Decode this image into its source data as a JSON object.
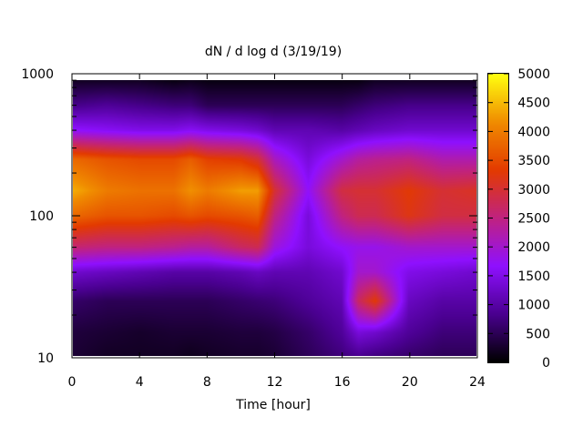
{
  "chart_data": {
    "type": "heatmap",
    "title": "dN / d log d (3/19/19)",
    "xlabel": "Time [hour]",
    "ylabel": "",
    "xlim": [
      0,
      24
    ],
    "ylim": [
      10,
      1000
    ],
    "yscale": "log",
    "x_ticks": [
      0,
      4,
      8,
      12,
      16,
      20,
      24
    ],
    "x_tick_labels": [
      "0",
      "4",
      "8",
      "12",
      "16",
      "20",
      "24"
    ],
    "y_ticks": [
      10,
      100,
      1000
    ],
    "y_tick_labels": [
      "10",
      "100",
      "1000"
    ],
    "colorbar": {
      "min": 0,
      "max": 5000,
      "ticks": [
        0,
        500,
        1000,
        1500,
        2000,
        2500,
        3000,
        3500,
        4000,
        4500,
        5000
      ],
      "tick_labels": [
        "0",
        "500",
        "1000",
        "1500",
        "2000",
        "2500",
        "3000",
        "3500",
        "4000",
        "4500",
        "5000"
      ],
      "palette": [
        "#000000",
        "#4a0090",
        "#8f10ff",
        "#c02280",
        "#e33a00",
        "#f08c00",
        "#ffff10"
      ]
    },
    "times": [
      0,
      2,
      4,
      6,
      7,
      8,
      10,
      11,
      12,
      14,
      16,
      17,
      18,
      20,
      22,
      24
    ],
    "diameters": [
      10,
      15,
      25,
      40,
      60,
      100,
      150,
      250,
      400,
      600,
      900
    ],
    "values": [
      [
        300,
        350,
        600,
        1300,
        2600,
        3800,
        4400,
        3800,
        1700,
        800,
        200
      ],
      [
        200,
        300,
        500,
        1200,
        2500,
        3600,
        4000,
        3600,
        1600,
        900,
        200
      ],
      [
        200,
        250,
        500,
        1100,
        2500,
        3600,
        3900,
        3500,
        1500,
        800,
        200
      ],
      [
        200,
        300,
        500,
        1000,
        2400,
        3500,
        3900,
        3500,
        1500,
        700,
        100
      ],
      [
        150,
        300,
        500,
        1000,
        2300,
        3600,
        4200,
        3700,
        1600,
        700,
        150
      ],
      [
        200,
        300,
        500,
        1000,
        2300,
        3500,
        4000,
        3400,
        1500,
        500,
        100
      ],
      [
        250,
        350,
        600,
        1100,
        2700,
        3600,
        4300,
        3300,
        1400,
        500,
        100
      ],
      [
        250,
        350,
        650,
        1200,
        2800,
        3700,
        4300,
        3000,
        1300,
        500,
        100
      ],
      [
        300,
        400,
        700,
        1100,
        1900,
        2500,
        3000,
        2100,
        1100,
        500,
        100
      ],
      [
        500,
        600,
        900,
        1100,
        1400,
        1400,
        1700,
        1400,
        1100,
        500,
        100
      ],
      [
        700,
        900,
        1100,
        1300,
        1700,
        2500,
        2900,
        2000,
        1000,
        500,
        100
      ],
      [
        800,
        1400,
        2700,
        2000,
        1800,
        2800,
        3000,
        2300,
        1100,
        600,
        100
      ],
      [
        700,
        1300,
        3300,
        2000,
        1800,
        2800,
        3000,
        2400,
        1200,
        700,
        200
      ],
      [
        600,
        900,
        1200,
        1500,
        2000,
        3200,
        3300,
        2500,
        1300,
        800,
        200
      ],
      [
        500,
        700,
        1000,
        1400,
        2000,
        2900,
        3000,
        2200,
        1300,
        800,
        200
      ],
      [
        500,
        700,
        1000,
        1300,
        2000,
        2900,
        3100,
        2200,
        1300,
        800,
        200
      ]
    ]
  }
}
